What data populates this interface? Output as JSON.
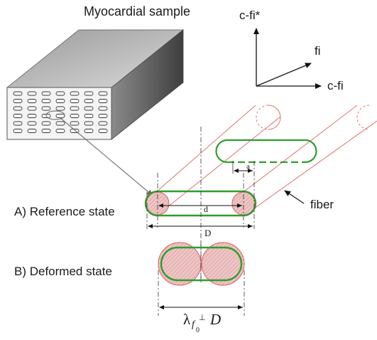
{
  "labels": {
    "sample_title": "Myocardial sample",
    "axis_cfi_star": "c-fi*",
    "axis_fi": "fi",
    "axis_cfi": "c-fi",
    "fiber": "fiber",
    "reference_state": "A) Reference state",
    "deformed_state": "B) Deformed state",
    "dim_d": "d",
    "dim_a": "a",
    "dim_D": "D",
    "stretch_lambda": "λ",
    "stretch_sub_f": "f",
    "stretch_sub_0": "0",
    "stretch_sup_perp": "⊥",
    "stretch_D": "D"
  },
  "colors": {
    "fiber_outline": "#e07070",
    "matrix_green": "#2e9e2e",
    "fiber_fill": "#e8b4b4",
    "block_top": "#bdbdbd",
    "block_front": "#f2f2f2",
    "block_side": "#707070"
  }
}
